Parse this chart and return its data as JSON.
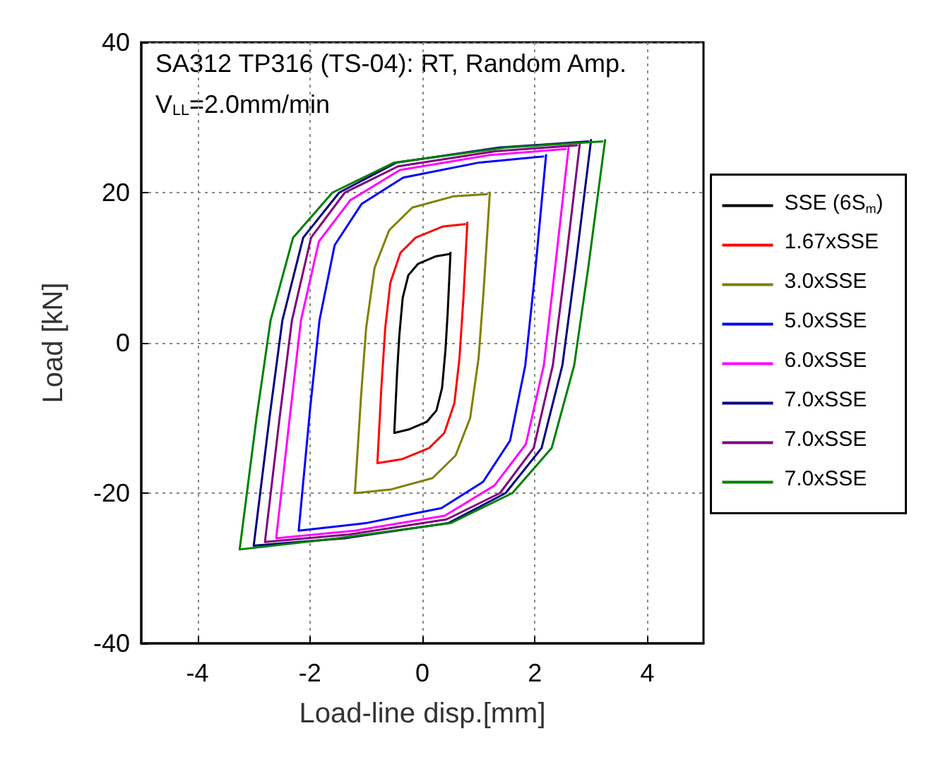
{
  "chart_data": {
    "type": "line",
    "title": "SA312 TP316 (TS-04): RT, Random Amp.",
    "subtitle": "V$_{LL}$=2.0mm/min",
    "xlabel": "Load-line disp.[mm]",
    "ylabel": "Load [kN]",
    "xlim": [
      -5,
      5
    ],
    "xticks": [
      -4,
      -2,
      0,
      2,
      4
    ],
    "ylim": [
      -40,
      40
    ],
    "yticks": [
      -40,
      -20,
      0,
      20,
      40
    ],
    "grid": true,
    "legend": "right",
    "series": [
      {
        "name": "SSE (6S$_{m}$)",
        "color": "#000000",
        "x": [
          0.5,
          0.45,
          0.41,
          0.35,
          0.25,
          0.08,
          -0.23,
          -0.5,
          -0.45,
          -0.41,
          -0.35,
          -0.25,
          -0.08,
          0.23,
          0.47
        ],
        "values": [
          12,
          4,
          -1,
          -6,
          -9,
          -10.5,
          -11.5,
          -12,
          -4,
          1,
          6,
          9,
          10.5,
          11.5,
          11.8
        ]
      },
      {
        "name": "1.67xSSE",
        "color": "#ff0000",
        "x": [
          0.8,
          0.73,
          0.66,
          0.57,
          0.39,
          0.12,
          -0.37,
          -0.8,
          -0.73,
          -0.66,
          -0.57,
          -0.39,
          -0.12,
          0.37,
          0.76
        ],
        "values": [
          16,
          6,
          -2,
          -8,
          -12,
          -14,
          -15.5,
          -16,
          -6,
          2,
          8,
          12,
          14,
          15.5,
          15.8
        ]
      },
      {
        "name": "3.0xSSE",
        "color": "#808000",
        "x": [
          1.2,
          1.09,
          1.0,
          0.85,
          0.59,
          0.18,
          -0.55,
          -1.2,
          -1.09,
          -1.0,
          -0.85,
          -0.59,
          -0.18,
          0.55,
          1.15
        ],
        "values": [
          20,
          7,
          -2,
          -10,
          -15,
          -18,
          -19.5,
          -20,
          -7,
          2,
          10,
          15,
          18,
          19.5,
          19.8
        ]
      },
      {
        "name": "5.0xSSE",
        "color": "#0000ff",
        "x": [
          2.2,
          2.0,
          1.83,
          1.56,
          1.08,
          0.34,
          -1.01,
          -2.2,
          -2.0,
          -1.83,
          -1.56,
          -1.08,
          -0.34,
          1.01,
          2.15
        ],
        "values": [
          25,
          9,
          -3,
          -13,
          -18.5,
          -22,
          -24,
          -25,
          -9,
          3,
          13,
          18.5,
          22,
          24,
          24.8
        ]
      },
      {
        "name": "6.0xSSE",
        "color": "#ff00ff",
        "x": [
          2.6,
          2.36,
          2.16,
          1.84,
          1.28,
          0.4,
          -1.2,
          -2.6,
          -2.36,
          -2.16,
          -1.84,
          -1.28,
          -0.4,
          1.2,
          2.55
        ],
        "values": [
          26,
          10,
          -3,
          -13.5,
          -19,
          -23,
          -25,
          -26,
          -10,
          3,
          13.5,
          19,
          23,
          25,
          25.8
        ]
      },
      {
        "name": "7.0xSSE",
        "color": "#000080",
        "x": [
          3.0,
          2.72,
          2.49,
          2.12,
          1.48,
          0.46,
          -1.38,
          -3.0,
          -2.72,
          -2.49,
          -2.12,
          -1.48,
          -0.46,
          1.38,
          2.95
        ],
        "values": [
          27,
          10,
          -3,
          -14,
          -20,
          -24,
          -26,
          -27,
          -10,
          3,
          14,
          20,
          24,
          26,
          26.8
        ]
      },
      {
        "name": "7.0xSSE",
        "color": "#800080",
        "x": [
          2.8,
          2.54,
          2.32,
          1.98,
          1.38,
          0.43,
          -1.29,
          -2.8,
          -2.54,
          -2.32,
          -1.98,
          -1.38,
          -0.43,
          1.29,
          2.75
        ],
        "values": [
          26.5,
          10,
          -3,
          -14,
          -20,
          -23.5,
          -25.5,
          -26.5,
          -10,
          3,
          14,
          20,
          23.5,
          25.5,
          26.3
        ]
      },
      {
        "name": "7.0xSSE",
        "color": "#008000",
        "x": [
          3.25,
          2.95,
          2.7,
          2.3,
          1.6,
          0.5,
          -1.5,
          -3.25,
          -2.95,
          -2.7,
          -2.3,
          -1.6,
          -0.5,
          1.5,
          3.2
        ],
        "values": [
          27,
          10,
          -3,
          -14,
          -20,
          -24,
          -26,
          -27.5,
          -10,
          3,
          14,
          20,
          24,
          26,
          26.8
        ]
      }
    ]
  }
}
